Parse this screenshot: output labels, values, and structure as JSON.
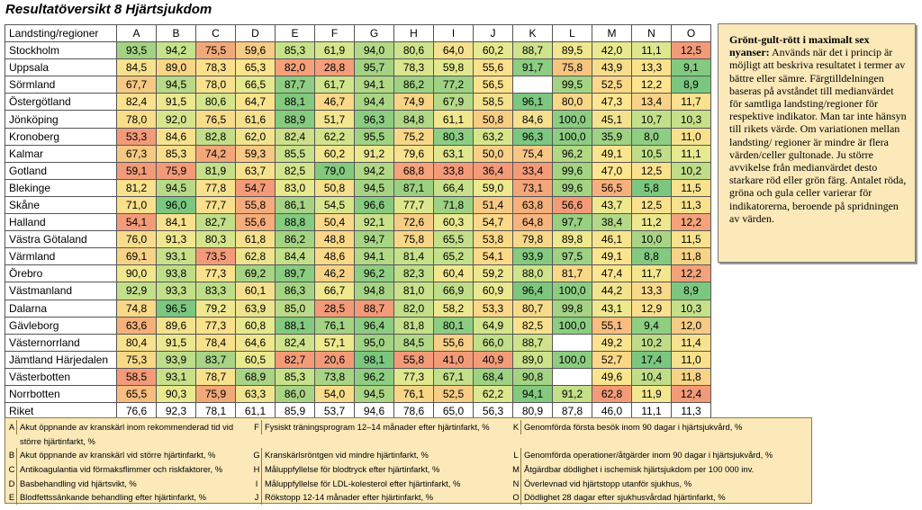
{
  "title": "Resultatöversikt 8 Hjärtsjukdom",
  "table": {
    "corner_label": "Landsting/regioner",
    "columns": [
      "A",
      "B",
      "C",
      "D",
      "E",
      "F",
      "G",
      "H",
      "I",
      "J",
      "K",
      "L",
      "M",
      "N",
      "O"
    ],
    "rows": [
      {
        "region": "Stockholm",
        "values": [
          "93,5",
          "94,2",
          "75,5",
          "59,6",
          "85,3",
          "61,9",
          "94,0",
          "80,6",
          "64,0",
          "60,2",
          "88,7",
          "89,5",
          "42,0",
          "11,1",
          "12,5"
        ],
        "colors": [
          "#a3d283",
          "#c6e28a",
          "#f2a979",
          "#f6cb85",
          "#c7e18a",
          "#d6e68d",
          "#b3d887",
          "#cde38b",
          "#f6e18e",
          "#e6e98f",
          "#cee38c",
          "#f0e78e",
          "#e9e98f",
          "#dee78d",
          "#f39b79"
        ]
      },
      {
        "region": "Uppsala",
        "values": [
          "84,5",
          "89,0",
          "78,3",
          "65,3",
          "82,0",
          "28,8",
          "95,7",
          "78,3",
          "59,8",
          "55,6",
          "91,7",
          "75,8",
          "43,9",
          "13,3",
          "9,1"
        ],
        "colors": [
          "#f7e28e",
          "#f8d587",
          "#fae08d",
          "#fbe48e",
          "#f6a07a",
          "#f49e7a",
          "#a3d283",
          "#d9e68d",
          "#e3e88e",
          "#fbe08d",
          "#8ccd82",
          "#f6c481",
          "#f6de8c",
          "#fae28d",
          "#84c980"
        ]
      },
      {
        "region": "Sörmland",
        "values": [
          "67,7",
          "94,5",
          "78,0",
          "66,5",
          "87,7",
          "61,7",
          "94,1",
          "86,2",
          "77,2",
          "56,5",
          "",
          "99,5",
          "52,5",
          "12,2",
          "8,9"
        ],
        "colors": [
          "#f6c983",
          "#b8da88",
          "#f8e18d",
          "#e4e88e",
          "#8fce82",
          "#d0e48c",
          "#b1d787",
          "#a1d283",
          "#9fd183",
          "#fbe28d",
          "#ffffff",
          "#a5d384",
          "#fbd988",
          "#fde58e",
          "#7cc77f"
        ]
      },
      {
        "region": "Östergötland",
        "values": [
          "82,4",
          "91,5",
          "80,6",
          "64,7",
          "88,1",
          "46,7",
          "94,4",
          "74,9",
          "67,9",
          "58,5",
          "96,1",
          "80,0",
          "47,3",
          "13,4",
          "11,7"
        ],
        "colors": [
          "#fbe18d",
          "#ece88f",
          "#d5e58c",
          "#f9e38d",
          "#83ca7f",
          "#fbd988",
          "#aad585",
          "#f8d586",
          "#b5d988",
          "#f5e28d",
          "#7cc77f",
          "#f8d788",
          "#fde68f",
          "#f8d387",
          "#fbe08d"
        ]
      },
      {
        "region": "Jönköping",
        "values": [
          "78,0",
          "92,0",
          "76,5",
          "61,6",
          "88,9",
          "51,7",
          "96,3",
          "84,8",
          "61,1",
          "50,8",
          "84,6",
          "100,0",
          "45,1",
          "10,7",
          "10,3"
        ],
        "colors": [
          "#f8dd8b",
          "#d6e58c",
          "#f9dc8b",
          "#f5e08d",
          "#85cb80",
          "#f3e68f",
          "#8ccd82",
          "#b1d787",
          "#f2e78e",
          "#f7cd85",
          "#f4e08e",
          "#8ccd82",
          "#f2e48f",
          "#c3df8a",
          "#c6e08a"
        ]
      },
      {
        "region": "Kronoberg",
        "values": [
          "53,3",
          "84,6",
          "82,8",
          "62,0",
          "82,4",
          "62,2",
          "95,5",
          "75,2",
          "80,3",
          "63,2",
          "96,3",
          "100,0",
          "35,9",
          "8,0",
          "11,0"
        ],
        "colors": [
          "#f39b79",
          "#f7e18d",
          "#c2de89",
          "#f2e48f",
          "#ccdf8a",
          "#d1e48c",
          "#a0d283",
          "#f7d787",
          "#8ccd82",
          "#d6e58c",
          "#7cc77f",
          "#8ccd82",
          "#9fd183",
          "#8dce82",
          "#f7e18d"
        ]
      },
      {
        "region": "Kalmar",
        "values": [
          "67,3",
          "85,3",
          "74,2",
          "59,3",
          "85,5",
          "60,2",
          "91,2",
          "79,6",
          "63,1",
          "50,0",
          "75,4",
          "96,2",
          "49,1",
          "10,5",
          "11,1"
        ],
        "colors": [
          "#f6c983",
          "#f8de8c",
          "#f2a77a",
          "#f6c985",
          "#c9e28b",
          "#f2e68f",
          "#ece88f",
          "#f8e28d",
          "#e0e78e",
          "#f8d086",
          "#f8c785",
          "#b2d886",
          "#fae58e",
          "#c0de89",
          "#e6e98f"
        ]
      },
      {
        "region": "Gotland",
        "values": [
          "59,1",
          "75,9",
          "81,9",
          "63,7",
          "82,5",
          "79,0",
          "94,2",
          "68,8",
          "33,8",
          "36,4",
          "33,4",
          "99,6",
          "47,0",
          "12,5",
          "10,2"
        ],
        "colors": [
          "#f39b79",
          "#f39b79",
          "#c6e08a",
          "#f6e18d",
          "#d2e48c",
          "#83ca7f",
          "#b1d787",
          "#f5a37b",
          "#f39b79",
          "#f39b79",
          "#f39b79",
          "#a5d384",
          "#fde68f",
          "#fae28d",
          "#bfdd89"
        ]
      },
      {
        "region": "Blekinge",
        "values": [
          "81,2",
          "94,5",
          "77,8",
          "54,7",
          "83,0",
          "50,8",
          "94,5",
          "87,1",
          "66,4",
          "59,0",
          "73,1",
          "99,6",
          "56,5",
          "5,8",
          "11,5"
        ],
        "colors": [
          "#f9e28d",
          "#b8da88",
          "#f8e18d",
          "#f39b79",
          "#e8e98f",
          "#f6e08d",
          "#a6d484",
          "#9bd082",
          "#c7e18a",
          "#eee88f",
          "#f2a77a",
          "#a5d384",
          "#f7b07d",
          "#7cc77f",
          "#f8e28d"
        ]
      },
      {
        "region": "Skåne",
        "values": [
          "71,0",
          "96,0",
          "77,7",
          "55,8",
          "86,1",
          "54,5",
          "96,6",
          "77,7",
          "71,8",
          "51,4",
          "63,8",
          "56,6",
          "43,7",
          "12,5",
          "11,3"
        ],
        "colors": [
          "#f8e08c",
          "#7cc77f",
          "#f8e08c",
          "#f5ac7c",
          "#a6d484",
          "#d7e68d",
          "#88cb80",
          "#dde78e",
          "#9fd183",
          "#f6cb85",
          "#f5b07c",
          "#f39b79",
          "#eee88f",
          "#fae28d",
          "#f9e28d"
        ]
      },
      {
        "region": "Halland",
        "values": [
          "54,1",
          "84,1",
          "82,7",
          "55,6",
          "88,8",
          "50,4",
          "92,1",
          "72,6",
          "60,3",
          "54,7",
          "64,8",
          "97,7",
          "38,4",
          "11,2",
          "12,2"
        ],
        "colors": [
          "#f39b79",
          "#f8e18d",
          "#c2de89",
          "#f4ad7b",
          "#85cb80",
          "#fbd988",
          "#c9e18a",
          "#f7cd85",
          "#e8e98f",
          "#fbd988",
          "#f6b57e",
          "#99cf82",
          "#b4d887",
          "#ede88f",
          "#f4a27b"
        ]
      },
      {
        "region": "Västra Götaland",
        "values": [
          "76,0",
          "91,3",
          "80,3",
          "61,8",
          "86,2",
          "48,8",
          "94,7",
          "75,8",
          "65,5",
          "53,8",
          "79,8",
          "89,8",
          "46,1",
          "10,0",
          "11,5"
        ],
        "colors": [
          "#f7dd8b",
          "#f0e78e",
          "#d5e58c",
          "#f5e08d",
          "#a4d384",
          "#fad888",
          "#a7d485",
          "#f7d787",
          "#c3df8a",
          "#fbd988",
          "#f7d788",
          "#eee88f",
          "#f6e48f",
          "#a9d485",
          "#f8e28d"
        ]
      },
      {
        "region": "Värmland",
        "values": [
          "69,1",
          "93,1",
          "73,5",
          "62,8",
          "84,4",
          "48,6",
          "94,1",
          "81,4",
          "65,2",
          "54,1",
          "93,9",
          "97,5",
          "49,1",
          "8,8",
          "11,8"
        ],
        "colors": [
          "#f8d386",
          "#c8e08a",
          "#f39b79",
          "#eee48e",
          "#c4df8a",
          "#fbd988",
          "#b3d887",
          "#c7e18a",
          "#c5e08a",
          "#fbd988",
          "#84ca7f",
          "#9ed183",
          "#fae58e",
          "#84c980",
          "#f6d386"
        ]
      },
      {
        "region": "Örebro",
        "values": [
          "90,0",
          "93,8",
          "77,3",
          "69,2",
          "89,7",
          "46,2",
          "96,2",
          "82,3",
          "60,4",
          "59,2",
          "88,0",
          "81,7",
          "47,4",
          "11,7",
          "12,2"
        ],
        "colors": [
          "#f0e78e",
          "#bfdd89",
          "#f9e18d",
          "#a6d484",
          "#8acc81",
          "#f7d386",
          "#8fce82",
          "#c1de89",
          "#f2e68f",
          "#ede88f",
          "#cee38c",
          "#f9d888",
          "#fde68f",
          "#f3e68f",
          "#f4a27b"
        ]
      },
      {
        "region": "Västmanland",
        "values": [
          "92,9",
          "93,3",
          "83,3",
          "60,1",
          "86,3",
          "66,7",
          "94,8",
          "81,0",
          "66,9",
          "60,9",
          "96,4",
          "100,0",
          "44,2",
          "13,3",
          "8,9"
        ],
        "colors": [
          "#c3df8a",
          "#c3df8a",
          "#bedd89",
          "#f5e18d",
          "#a4d384",
          "#eee88f",
          "#a6d484",
          "#c8e18a",
          "#c0de89",
          "#e9e98f",
          "#7cc77f",
          "#8ccd82",
          "#f2e48f",
          "#f9d98a",
          "#7cc77f"
        ]
      },
      {
        "region": "Dalarna",
        "values": [
          "74,8",
          "96,5",
          "79,2",
          "63,9",
          "85,0",
          "28,5",
          "88,7",
          "82,0",
          "58,2",
          "53,3",
          "80,7",
          "99,8",
          "43,1",
          "12,9",
          "10,3"
        ],
        "colors": [
          "#f8d986",
          "#7cc77f",
          "#eee88f",
          "#ece48e",
          "#bcdb88",
          "#f39b79",
          "#f39b79",
          "#c4df8a",
          "#ede88f",
          "#fbd988",
          "#f8db8a",
          "#a5d384",
          "#eee88f",
          "#fae08d",
          "#c6e08a"
        ]
      },
      {
        "region": "Gävleborg",
        "values": [
          "63,6",
          "89,6",
          "77,3",
          "60,8",
          "88,1",
          "76,1",
          "96,4",
          "81,8",
          "80,1",
          "64,9",
          "82,5",
          "100,0",
          "55,1",
          "9,4",
          "12,0"
        ],
        "colors": [
          "#f5b07c",
          "#f3e38e",
          "#f9e18d",
          "#e7e98f",
          "#83ca7f",
          "#a3d283",
          "#8ccd82",
          "#c5e08a",
          "#8ccd82",
          "#d2e48c",
          "#f9e28d",
          "#8ccd82",
          "#f9bd80",
          "#8ecf82",
          "#f6cb85"
        ]
      },
      {
        "region": "Västernorrland",
        "values": [
          "80,4",
          "91,5",
          "78,4",
          "64,6",
          "82,4",
          "57,1",
          "95,0",
          "84,5",
          "55,6",
          "66,0",
          "88,7",
          "",
          "49,2",
          "10,2",
          "11,4"
        ],
        "colors": [
          "#f9e28d",
          "#ece88f",
          "#f8e18d",
          "#f0e68f",
          "#cfe38c",
          "#eee88f",
          "#a2d283",
          "#b3d887",
          "#f7cf86",
          "#c1de89",
          "#cee38c",
          "#ffffff",
          "#fae58e",
          "#bfdd89",
          "#f8e28d"
        ]
      },
      {
        "region": "Jämtland Härjedalen",
        "values": [
          "75,3",
          "93,9",
          "83,7",
          "60,5",
          "82,7",
          "20,6",
          "98,1",
          "55,8",
          "41,0",
          "40,9",
          "89,0",
          "100,0",
          "52,7",
          "17,4",
          "11,0"
        ],
        "colors": [
          "#f8d986",
          "#bedd89",
          "#a7d485",
          "#ebe98f",
          "#f39b79",
          "#f39b79",
          "#7cc77f",
          "#f39b79",
          "#f39b79",
          "#f39b79",
          "#cce28b",
          "#8ccd82",
          "#fbd888",
          "#7cc77f",
          "#f7e18d"
        ]
      },
      {
        "region": "Västerbotten",
        "values": [
          "58,5",
          "93,1",
          "78,7",
          "68,9",
          "85,3",
          "73,8",
          "96,2",
          "77,3",
          "67,1",
          "68,4",
          "90,8",
          "",
          "49,6",
          "10,4",
          "11,8"
        ],
        "colors": [
          "#f39b79",
          "#c8e08a",
          "#f8e18d",
          "#a9d485",
          "#c7e18a",
          "#a9d485",
          "#8fce82",
          "#e1e78e",
          "#c3df8a",
          "#9fd183",
          "#a5d384",
          "#ffffff",
          "#fae58e",
          "#c0de89",
          "#f6d386"
        ]
      },
      {
        "region": "Norrbotten",
        "values": [
          "65,5",
          "90,3",
          "75,9",
          "63,3",
          "86,0",
          "54,0",
          "94,5",
          "76,1",
          "52,5",
          "62,2",
          "94,1",
          "91,2",
          "62,8",
          "11,9",
          "12,4"
        ],
        "colors": [
          "#f7bd81",
          "#e9e98f",
          "#f2a979",
          "#f0e48f",
          "#a9d485",
          "#f9dc8b",
          "#aad585",
          "#f7d787",
          "#f7cd86",
          "#dde78e",
          "#83ca7f",
          "#c3df8a",
          "#f39b79",
          "#f3e68f",
          "#f39b79"
        ]
      },
      {
        "region": "Riket",
        "values": [
          "76,6",
          "92,3",
          "78,1",
          "61,1",
          "85,9",
          "53,7",
          "94,6",
          "78,6",
          "65,0",
          "56,3",
          "80,9",
          "87,8",
          "46,0",
          "11,1",
          "11,3"
        ],
        "colors": []
      }
    ]
  },
  "note": {
    "title": "Grönt-gult-rött i maximalt sex nyanser:",
    "body": "Används när det i princip är möjligt att beskriva resultatet i termer av bättre eller sämre. Färgtilldelningen baseras på avståndet till medianvärdet för samtliga landsting/regioner för respektive indikator. Man tar inte hänsyn till rikets värde. Om variationen mellan landsting/ regioner är mindre är flera värden/celler gultonade. Ju större avvikelse från medianvärdet desto starkare röd eller grön färg. Antalet röda, gröna och gula celler varierar för indikatorerna, beroende på spridningen av värden."
  },
  "legend": [
    {
      "letter": "A",
      "text": "Akut öppnande av kranskärl inom rekommenderad tid vid större hjärtinfarkt, %"
    },
    {
      "letter": "B",
      "text": "Akut öppnande av kranskärl vid större hjärtinfarkt, %"
    },
    {
      "letter": "C",
      "text": "Antikoagulantia vid förmaksflimmer och riskfaktorer, %"
    },
    {
      "letter": "D",
      "text": "Basbehandling vid hjärtsvikt, %"
    },
    {
      "letter": "E",
      "text": "Blodfettssänkande behandling efter hjärtinfarkt, %"
    },
    {
      "letter": "F",
      "text": "Fysiskt träningsprogram 12–14 månader efter hjärtinfarkt, %"
    },
    {
      "letter": "G",
      "text": "Kranskärlsröntgen vid mindre hjärtinfarkt, %"
    },
    {
      "letter": "H",
      "text": "Måluppfyllelse för blodtryck efter hjärtinfarkt, %"
    },
    {
      "letter": "I",
      "text": "Måluppfyllelse för LDL-kolesterol efter hjärtinfarkt, %"
    },
    {
      "letter": "J",
      "text": "Rökstopp 12-14 månader efter hjärtinfarkt, %"
    },
    {
      "letter": "K",
      "text": "Genomförda första besök inom 90 dagar i hjärtsjukvård, %"
    },
    {
      "letter": "L",
      "text": "Genomförda operationer/åtgärder inom 90 dagar i hjärtsjukvård, %"
    },
    {
      "letter": "M",
      "text": "Åtgärdbar dödlighet i ischemisk hjärtsjukdom per 100 000 inv."
    },
    {
      "letter": "N",
      "text": "Överlevnad vid hjärtstopp utanför sjukhus, %"
    },
    {
      "letter": "O",
      "text": "Dödlighet 28 dagar efter sjukhusvårdad hjärtinfarkt, %"
    }
  ]
}
